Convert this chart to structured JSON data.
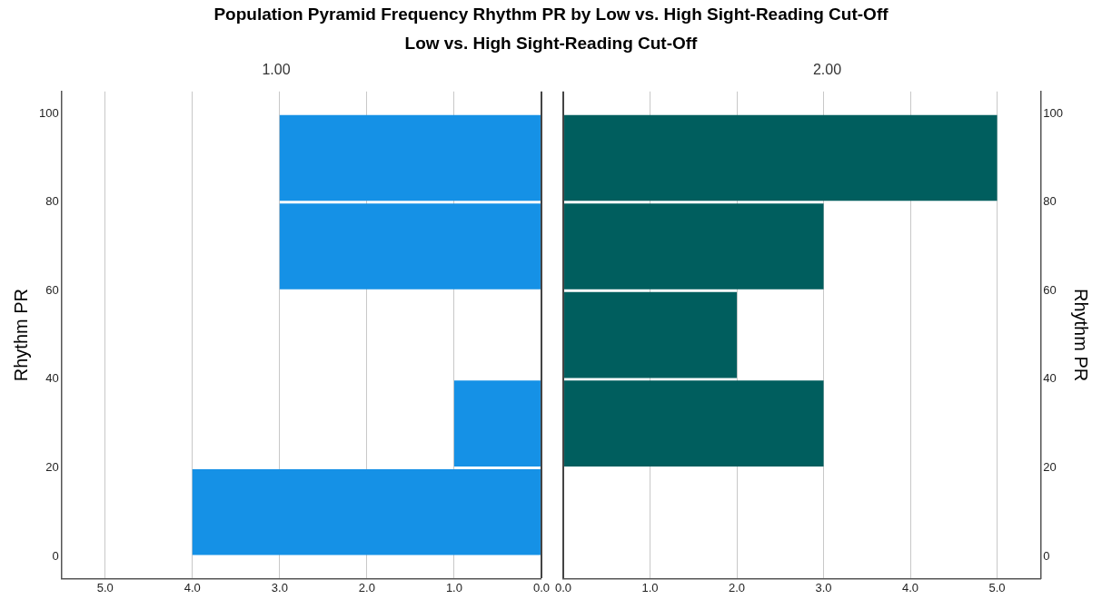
{
  "chart_data": [
    {
      "type": "histogram",
      "title": "Population Pyramid Frequency Rhythm PR by Low vs. High Sight-Reading Cut-Off",
      "subtitle": "Low vs. High Sight-Reading Cut-Off",
      "xlabel": "1.00",
      "ylabel": "Rhythm PR",
      "orientation": "horizontal",
      "bins": [
        0,
        20,
        40,
        60,
        80,
        100
      ],
      "values": [
        4,
        1,
        0,
        3,
        3
      ],
      "color": "#1591e6",
      "xlim": [
        5.5,
        0
      ],
      "xticks": [
        {
          "value": 5,
          "label": "5.0"
        },
        {
          "value": 4,
          "label": "4.0"
        },
        {
          "value": 3,
          "label": "3.0"
        },
        {
          "value": 2,
          "label": "2.0"
        },
        {
          "value": 1,
          "label": "1.0"
        },
        {
          "value": 0,
          "label": "0.0"
        }
      ],
      "ylim": [
        -5,
        105
      ],
      "yticks": [
        0,
        20,
        40,
        60,
        80,
        100
      ],
      "grid": "x"
    },
    {
      "type": "histogram",
      "xlabel": "2.00",
      "ylabel": "Rhythm PR",
      "orientation": "horizontal",
      "bins": [
        0,
        20,
        40,
        60,
        80,
        100
      ],
      "values": [
        0,
        3,
        2,
        3,
        5
      ],
      "color": "#005e5e",
      "xlim": [
        0,
        5.5
      ],
      "xticks": [
        {
          "value": 0,
          "label": "0.0"
        },
        {
          "value": 1,
          "label": "1.0"
        },
        {
          "value": 2,
          "label": "2.0"
        },
        {
          "value": 3,
          "label": "3.0"
        },
        {
          "value": 4,
          "label": "4.0"
        },
        {
          "value": 5,
          "label": "5.0"
        }
      ],
      "ylim": [
        -5,
        105
      ],
      "yticks": [
        0,
        20,
        40,
        60,
        80,
        100
      ],
      "grid": "x"
    }
  ]
}
